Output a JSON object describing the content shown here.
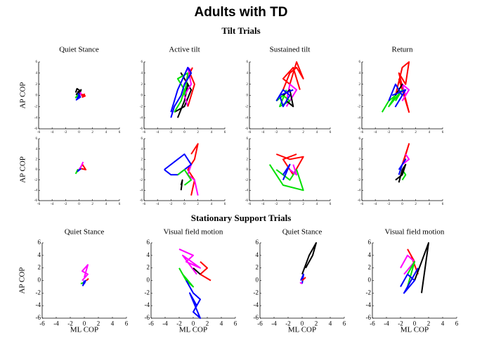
{
  "title": "Adults with TD",
  "sections": [
    "Tilt Trials",
    "Stationary Support Trials"
  ],
  "chart_data": [
    {
      "type": "line",
      "title": "Quiet Stance",
      "ylabel": "AP COP",
      "xlim": [
        -6,
        6
      ],
      "ylim": [
        -6,
        6
      ],
      "xticks": [
        -6,
        -4,
        -2,
        0,
        2,
        4,
        6
      ],
      "yticks": [
        -6,
        -4,
        -2,
        0,
        2,
        4,
        6
      ],
      "series": [
        {
          "color": "#000000",
          "x": [
            -0.5,
            -0.3,
            0.2,
            -0.4,
            0.1,
            -0.2,
            0.3,
            0
          ],
          "values": [
            0.5,
            1.2,
            0.8,
            0.2,
            -0.3,
            0.6,
            1,
            0
          ]
        },
        {
          "color": "#ff00ff",
          "x": [
            0,
            0.3,
            0.5,
            0.2,
            0.4
          ],
          "values": [
            0,
            0.3,
            -0.2,
            0.5,
            0.1
          ]
        },
        {
          "color": "#ff0000",
          "x": [
            0.3,
            0.8,
            0.5,
            0.9,
            0.4
          ],
          "values": [
            0,
            0.2,
            -0.3,
            -0.1,
            0.2
          ]
        },
        {
          "color": "#00e000",
          "x": [
            -0.4,
            -0.2,
            -0.5,
            -0.1
          ],
          "values": [
            -0.2,
            0.1,
            -0.4,
            0
          ]
        },
        {
          "color": "#0000ff",
          "x": [
            -0.3,
            0.1,
            -0.4,
            0.2,
            -0.1,
            0
          ],
          "values": [
            -0.5,
            0,
            -0.8,
            -0.3,
            0.3,
            -0.6
          ]
        }
      ]
    },
    {
      "type": "line",
      "title": "Active  tilt",
      "xlim": [
        -6,
        6
      ],
      "ylim": [
        -6,
        6
      ],
      "xticks": [
        -6,
        -4,
        -2,
        0,
        2,
        4,
        6
      ],
      "yticks": [
        -6,
        -4,
        -2,
        0,
        2,
        4,
        6
      ],
      "series": [
        {
          "color": "#000000",
          "x": [
            -1,
            0,
            0.5,
            -0.5,
            1,
            0,
            -1.5
          ],
          "values": [
            -4,
            -1,
            2,
            4,
            1,
            -2,
            -3
          ]
        },
        {
          "color": "#ff00ff",
          "x": [
            0,
            1,
            0.5,
            1,
            0,
            0.5
          ],
          "values": [
            2,
            4.5,
            5,
            2,
            0,
            -2
          ]
        },
        {
          "color": "#ff0000",
          "x": [
            0.5,
            1,
            1.5,
            0.8,
            1.2
          ],
          "values": [
            -2,
            0,
            2,
            4,
            5
          ]
        },
        {
          "color": "#00e000",
          "x": [
            -1.5,
            -0.5,
            0,
            -1,
            0.5,
            0
          ],
          "values": [
            -3,
            -1,
            1,
            3,
            4,
            0
          ]
        },
        {
          "color": "#0000ff",
          "x": [
            -2,
            -1.5,
            -0.5,
            0,
            1,
            0.5,
            -1,
            -2
          ],
          "values": [
            -4,
            -2,
            0,
            2,
            4,
            5,
            1,
            -3
          ]
        }
      ]
    },
    {
      "type": "line",
      "title": "Sustained tilt",
      "xlim": [
        -6,
        6
      ],
      "ylim": [
        -6,
        6
      ],
      "xticks": [
        -6,
        -4,
        -2,
        0,
        2,
        4,
        6
      ],
      "yticks": [
        -6,
        -4,
        -2,
        0,
        2,
        4,
        6
      ],
      "series": [
        {
          "color": "#ff0000",
          "x": [
            -1,
            0,
            1,
            2,
            1,
            0,
            -1,
            0.5,
            1.5
          ],
          "values": [
            1,
            4,
            5,
            3,
            6,
            2,
            3,
            5,
            1
          ]
        },
        {
          "color": "#ff00ff",
          "x": [
            -0.5,
            0.5,
            1,
            0,
            -0.5
          ],
          "values": [
            -2,
            0,
            1,
            2,
            -1
          ]
        },
        {
          "color": "#00e000",
          "x": [
            -2,
            -1,
            0,
            -1.5,
            -0.5
          ],
          "values": [
            -1,
            0,
            -1,
            -2,
            1
          ]
        },
        {
          "color": "#000000",
          "x": [
            -1,
            0,
            0.5,
            -0.5
          ],
          "values": [
            0,
            1,
            -2,
            -1
          ]
        },
        {
          "color": "#0000ff",
          "x": [
            -2,
            -1,
            0,
            -1,
            -1.5,
            0.5
          ],
          "values": [
            -1,
            1,
            0,
            -2,
            0,
            1
          ]
        }
      ]
    },
    {
      "type": "line",
      "title": "Return",
      "xlim": [
        -6,
        6
      ],
      "ylim": [
        -6,
        6
      ],
      "xticks": [
        -6,
        -4,
        -2,
        0,
        2,
        4,
        6
      ],
      "yticks": [
        -6,
        -4,
        -2,
        0,
        2,
        4,
        6
      ],
      "series": [
        {
          "color": "#ff0000",
          "x": [
            -1,
            0,
            1,
            0.5,
            -0.5,
            1,
            0,
            -0.5
          ],
          "values": [
            0,
            5,
            6,
            2,
            4,
            -3,
            1,
            3
          ]
        },
        {
          "color": "#00e000",
          "x": [
            -3,
            -2,
            -1,
            -2,
            0,
            -1
          ],
          "values": [
            -3,
            -1,
            0,
            -2,
            1,
            -1
          ]
        },
        {
          "color": "#ff00ff",
          "x": [
            0,
            1,
            0,
            0.5
          ],
          "values": [
            -1,
            1,
            2,
            0
          ]
        },
        {
          "color": "#000000",
          "x": [
            -1,
            0,
            -0.5
          ],
          "values": [
            0,
            2,
            1
          ]
        },
        {
          "color": "#0000ff",
          "x": [
            -2,
            -1,
            0,
            -1,
            0.5,
            -1.5
          ],
          "values": [
            -1,
            2,
            0,
            -2,
            1,
            0
          ]
        }
      ]
    },
    {
      "type": "line",
      "ylabel": "AP COP",
      "xlim": [
        -6,
        6
      ],
      "ylim": [
        -6,
        6
      ],
      "xticks": [
        -6,
        -4,
        -2,
        0,
        2,
        4,
        6
      ],
      "yticks": [
        -6,
        -4,
        -2,
        0,
        2,
        4,
        6
      ],
      "series": [
        {
          "color": "#ff0000",
          "x": [
            0,
            0.5,
            1,
            0.3
          ],
          "values": [
            0,
            1,
            0,
            0.2
          ]
        },
        {
          "color": "#ff00ff",
          "x": [
            0,
            0.3,
            0.6
          ],
          "values": [
            0,
            0.6,
            1.5
          ]
        },
        {
          "color": "#00e000",
          "x": [
            -0.3,
            -0.2,
            -0.5
          ],
          "values": [
            -0.5,
            0,
            -0.8
          ]
        },
        {
          "color": "#0000ff",
          "x": [
            0,
            -0.2,
            0.3
          ],
          "values": [
            0,
            -0.3,
            0.2
          ]
        }
      ]
    },
    {
      "type": "line",
      "xlim": [
        -6,
        6
      ],
      "ylim": [
        -6,
        6
      ],
      "xticks": [
        -6,
        -4,
        -2,
        0,
        2,
        4,
        6
      ],
      "yticks": [
        -6,
        -4,
        -2,
        0,
        2,
        4,
        6
      ],
      "series": [
        {
          "color": "#ff0000",
          "x": [
            1,
            1.5,
            0.5,
            1.5,
            2,
            1
          ],
          "values": [
            -5,
            -2,
            0,
            2,
            5,
            3
          ]
        },
        {
          "color": "#ff00ff",
          "x": [
            0,
            1,
            0.5,
            1.5,
            2
          ],
          "values": [
            0,
            1,
            -1,
            -2,
            -5
          ]
        },
        {
          "color": "#0000ff",
          "x": [
            -3,
            -1,
            0,
            1,
            -1,
            -2,
            -3
          ],
          "values": [
            0,
            2,
            3,
            1,
            -1,
            -1,
            0
          ]
        },
        {
          "color": "#000000",
          "x": [
            -0.5,
            -0.3,
            -0.5
          ],
          "values": [
            -3,
            -2,
            -4
          ]
        },
        {
          "color": "#00e000",
          "x": [
            -1,
            0,
            1,
            0
          ],
          "values": [
            -1,
            0,
            -2,
            -3
          ]
        }
      ]
    },
    {
      "type": "line",
      "xlim": [
        -6,
        6
      ],
      "ylim": [
        -6,
        6
      ],
      "xticks": [
        -6,
        -4,
        -2,
        0,
        2,
        4,
        6
      ],
      "yticks": [
        -6,
        -4,
        -2,
        0,
        2,
        4,
        6
      ],
      "series": [
        {
          "color": "#ff0000",
          "x": [
            -2,
            0,
            2,
            0.5,
            -1,
            1
          ],
          "values": [
            3,
            2,
            2.5,
            -1,
            2,
            3
          ]
        },
        {
          "color": "#00e000",
          "x": [
            -3,
            -1,
            2,
            1,
            0,
            -2
          ],
          "values": [
            1,
            -3,
            -4,
            0,
            -2,
            0
          ]
        },
        {
          "color": "#0000ff",
          "x": [
            -1,
            -0.5,
            0,
            -1
          ],
          "values": [
            -1,
            0,
            1,
            -2
          ]
        },
        {
          "color": "#ff00ff",
          "x": [
            0,
            1,
            0.5
          ],
          "values": [
            0,
            -1,
            1
          ]
        }
      ]
    },
    {
      "type": "line",
      "xlim": [
        -6,
        6
      ],
      "ylim": [
        -6,
        6
      ],
      "xticks": [
        -6,
        -4,
        -2,
        0,
        2,
        4,
        6
      ],
      "yticks": [
        -6,
        -4,
        -2,
        0,
        2,
        4,
        6
      ],
      "series": [
        {
          "color": "#ff0000",
          "x": [
            0,
            0.5,
            1,
            0.3
          ],
          "values": [
            1,
            3,
            5,
            2
          ]
        },
        {
          "color": "#ff00ff",
          "x": [
            0,
            1,
            0.5
          ],
          "values": [
            1,
            2,
            3
          ]
        },
        {
          "color": "#0000ff",
          "x": [
            -0.5,
            0,
            0.5,
            -0.5
          ],
          "values": [
            -1,
            1,
            2,
            0
          ]
        },
        {
          "color": "#00e000",
          "x": [
            0,
            0.5,
            0
          ],
          "values": [
            -2,
            -1,
            0
          ]
        },
        {
          "color": "#000000",
          "x": [
            -1,
            0,
            0.5,
            0,
            -0.5
          ],
          "values": [
            -2,
            -1,
            1,
            0,
            -2.5
          ]
        }
      ]
    },
    {
      "type": "line",
      "title": "Quiet Stance",
      "ylabel": "AP COP",
      "xlabel": "ML COP",
      "xlim": [
        -6,
        6
      ],
      "ylim": [
        -6,
        6
      ],
      "xticks": [
        -6,
        -4,
        -2,
        0,
        2,
        4,
        6
      ],
      "yticks": [
        -6,
        -4,
        -2,
        0,
        2,
        4,
        6
      ],
      "series": [
        {
          "color": "#ff00ff",
          "x": [
            -0.3,
            0.5,
            -0.3,
            0.5,
            0
          ],
          "values": [
            0,
            1,
            1.5,
            2.5,
            0.5
          ]
        },
        {
          "color": "#ff0000",
          "x": [
            0.3,
            0.6
          ],
          "values": [
            0,
            0.3
          ]
        },
        {
          "color": "#00e000",
          "x": [
            -0.5,
            0
          ],
          "values": [
            -0.5,
            -0.3
          ]
        },
        {
          "color": "#0000ff",
          "x": [
            0,
            0.2,
            -0.2,
            0
          ],
          "values": [
            -0.5,
            0,
            -0.8,
            0
          ]
        }
      ]
    },
    {
      "type": "line",
      "title": "Visual field motion",
      "xlabel": "ML COP",
      "xlim": [
        -6,
        6
      ],
      "ylim": [
        -6,
        6
      ],
      "xticks": [
        -6,
        -4,
        -2,
        0,
        2,
        4,
        6
      ],
      "yticks": [
        -6,
        -4,
        -2,
        0,
        2,
        4,
        6
      ],
      "series": [
        {
          "color": "#ff00ff",
          "x": [
            -2,
            0,
            -1,
            1,
            -1.5,
            0.5
          ],
          "values": [
            5,
            4,
            3,
            2,
            4,
            1
          ]
        },
        {
          "color": "#ff0000",
          "x": [
            1,
            2,
            1,
            2.5
          ],
          "values": [
            3,
            2,
            1,
            0
          ]
        },
        {
          "color": "#00e000",
          "x": [
            -2,
            -1,
            0,
            -1.5
          ],
          "values": [
            2,
            0,
            -1,
            1
          ]
        },
        {
          "color": "#0000ff",
          "x": [
            -1,
            0,
            1,
            0,
            1,
            -0.5,
            0.5
          ],
          "values": [
            0,
            -2,
            -3,
            -5,
            -6,
            -2,
            -4
          ]
        },
        {
          "color": "#000000",
          "x": [
            0,
            1
          ],
          "values": [
            2,
            1
          ]
        }
      ]
    },
    {
      "type": "line",
      "title": "Quiet Stance",
      "xlabel": "ML COP",
      "xlim": [
        -6,
        6
      ],
      "ylim": [
        -6,
        6
      ],
      "xticks": [
        -6,
        -4,
        -2,
        0,
        2,
        4,
        6
      ],
      "yticks": [
        -6,
        -4,
        -2,
        0,
        2,
        4,
        6
      ],
      "series": [
        {
          "color": "#000000",
          "x": [
            0,
            1,
            2,
            1.5,
            0.5
          ],
          "values": [
            1,
            4,
            6,
            4,
            2
          ]
        },
        {
          "color": "#0000ff",
          "x": [
            -0.2,
            0.2,
            0
          ],
          "values": [
            0,
            1,
            -0.5
          ]
        },
        {
          "color": "#ff0000",
          "x": [
            0,
            0.5
          ],
          "values": [
            0,
            0.5
          ]
        },
        {
          "color": "#ff00ff",
          "x": [
            -0.3,
            0
          ],
          "values": [
            -0.3,
            -0.5
          ]
        }
      ]
    },
    {
      "type": "line",
      "title": "Visual field motion",
      "xlabel": "ML COP",
      "xlim": [
        -6,
        6
      ],
      "ylim": [
        -6,
        6
      ],
      "xticks": [
        -6,
        -4,
        -2,
        0,
        2,
        4,
        6
      ],
      "yticks": [
        -6,
        -4,
        -2,
        0,
        2,
        4,
        6
      ],
      "series": [
        {
          "color": "#ff0000",
          "x": [
            -1,
            0,
            -0.5,
            0.5
          ],
          "values": [
            5,
            3,
            4,
            1
          ]
        },
        {
          "color": "#ff00ff",
          "x": [
            -2,
            -1,
            0,
            -1.5
          ],
          "values": [
            2,
            4,
            3,
            1
          ]
        },
        {
          "color": "#000000",
          "x": [
            0,
            1,
            2,
            1.5,
            1
          ],
          "values": [
            0,
            3,
            6,
            2,
            -2
          ]
        },
        {
          "color": "#00e000",
          "x": [
            -1,
            0,
            -1
          ],
          "values": [
            1,
            3,
            -1
          ]
        },
        {
          "color": "#0000ff",
          "x": [
            -2,
            -1,
            0,
            -1.5,
            0.5
          ],
          "values": [
            -1,
            1,
            0,
            -2,
            2
          ]
        }
      ]
    }
  ]
}
